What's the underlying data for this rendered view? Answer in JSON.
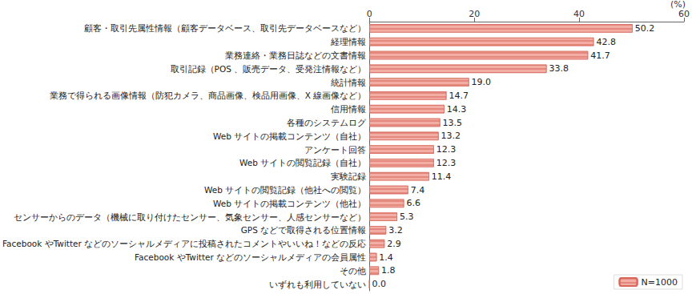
{
  "chart_data": {
    "type": "bar",
    "orientation": "horizontal",
    "x_label": "(%)",
    "categories": [
      "顧客・取引先属性情報（顧客データベース、取引先データベースなど）",
      "経理情報",
      "業務連絡・業務日誌などの文書情報",
      "取引記録（POS 、販売データ、受発注情報など）",
      "統計情報",
      "業務で得られる画像情報（防犯カメラ、商品画像、検品用画像、X 線画像など）",
      "信用情報",
      "各種のシステムログ",
      "Web サイトの掲載コンテンツ（自社）",
      "アンケート回答",
      "Web サイトの閲覧記録（自社）",
      "実験記録",
      "Web サイトの閲覧記録（他社への閲覧）",
      "Web サイトの掲載コンテンツ（他社）",
      "センサーからのデータ（機械に取り付けたセンサー、気象センサー、人感センサーなど）",
      "GPS などで取得される位置情報",
      "Facebook やTwitter などのソーシャルメディアに投稿されたコメントやいいね！などの反応",
      "Facebook やTwitter などのソーシャルメディアの会員属性",
      "その他",
      "いずれも利用していない"
    ],
    "series": [
      {
        "name": "N=1000",
        "color": "#f2aea4",
        "values": [
          50.2,
          42.8,
          41.7,
          33.8,
          19.0,
          14.7,
          14.3,
          13.5,
          13.2,
          12.3,
          12.3,
          11.4,
          7.4,
          6.6,
          5.3,
          3.2,
          2.9,
          1.4,
          1.8,
          0.0
        ],
        "value_labels": [
          "50.2",
          "42.8",
          "41.7",
          "33.8",
          "19.0",
          "14.7",
          "14.3",
          "13.5",
          "13.2",
          "12.3",
          "12.3",
          "11.4",
          "7.4",
          "6.6",
          "5.3",
          "3.2",
          "2.9",
          "1.4",
          "1.8",
          "0.0"
        ]
      }
    ],
    "xlim": [
      0,
      60
    ],
    "xticks": [
      0,
      20,
      40,
      60
    ],
    "grid": false,
    "legend": "lower right",
    "data_labels": true
  }
}
